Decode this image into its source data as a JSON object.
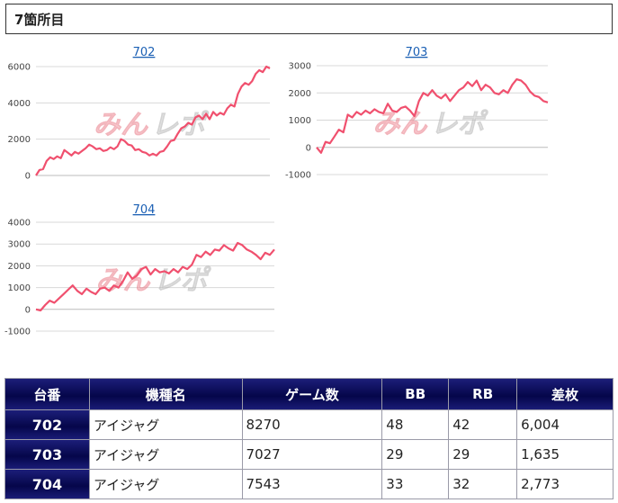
{
  "page": {
    "heading": "7箇所目"
  },
  "watermark": {
    "primary": "みん",
    "secondary": "レポ"
  },
  "chart_data": [
    {
      "type": "line",
      "title": "702",
      "ylim": [
        0,
        6000
      ],
      "yticks": [
        "0",
        "2000",
        "4000",
        "6000"
      ],
      "color": "#f0506e",
      "values": [
        0,
        300,
        350,
        800,
        1000,
        900,
        1050,
        950,
        1400,
        1250,
        1100,
        1300,
        1200,
        1350,
        1500,
        1700,
        1600,
        1450,
        1500,
        1350,
        1400,
        1550,
        1450,
        1600,
        2000,
        1900,
        1700,
        1650,
        1400,
        1450,
        1300,
        1250,
        1100,
        1200,
        1100,
        1300,
        1350,
        1600,
        1900,
        1950,
        2300,
        2600,
        2700,
        2900,
        2800,
        3200,
        3300,
        3100,
        3400,
        3100,
        3500,
        3300,
        3450,
        3350,
        3700,
        3900,
        3800,
        4500,
        4900,
        5100,
        5000,
        5200,
        5600,
        5800,
        5700,
        6000,
        5900
      ]
    },
    {
      "type": "line",
      "title": "703",
      "ylim": [
        -1000,
        3000
      ],
      "yticks": [
        "3000",
        "2000",
        "1000",
        "0",
        "-1000"
      ],
      "color": "#f0506e",
      "values": [
        0,
        -200,
        200,
        150,
        400,
        650,
        550,
        1200,
        1100,
        1300,
        1200,
        1350,
        1250,
        1400,
        1300,
        1250,
        1600,
        1350,
        1300,
        1450,
        1500,
        1350,
        1150,
        1700,
        2000,
        1900,
        2100,
        1900,
        1800,
        1950,
        1700,
        1900,
        2100,
        2200,
        2400,
        2250,
        2450,
        2100,
        2300,
        2200,
        2000,
        1950,
        2100,
        2000,
        2300,
        2500,
        2450,
        2300,
        2050,
        1900,
        1850,
        1700,
        1650
      ]
    },
    {
      "type": "line",
      "title": "704",
      "ylim": [
        -1000,
        4000
      ],
      "yticks": [
        "4000",
        "3000",
        "2000",
        "1000",
        "0",
        "-1000"
      ],
      "color": "#f0506e",
      "values": [
        0,
        -50,
        200,
        400,
        300,
        500,
        700,
        900,
        1100,
        850,
        700,
        950,
        800,
        700,
        950,
        1000,
        850,
        1100,
        1000,
        1300,
        1700,
        1400,
        1550,
        1850,
        1950,
        1600,
        1850,
        1700,
        1750,
        1650,
        1850,
        1700,
        1950,
        1850,
        2050,
        2500,
        2400,
        2650,
        2500,
        2750,
        2700,
        2950,
        2800,
        2700,
        3050,
        2950,
        2750,
        2650,
        2500,
        2300,
        2600,
        2500,
        2750
      ]
    }
  ],
  "table": {
    "headers": [
      "台番",
      "機種名",
      "ゲーム数",
      "BB",
      "RB",
      "差枚"
    ],
    "rows": [
      [
        "702",
        "アイジャグ",
        "8270",
        "48",
        "42",
        "6,004"
      ],
      [
        "703",
        "アイジャグ",
        "7027",
        "29",
        "29",
        "1,635"
      ],
      [
        "704",
        "アイジャグ",
        "7543",
        "33",
        "32",
        "2,773"
      ]
    ]
  }
}
